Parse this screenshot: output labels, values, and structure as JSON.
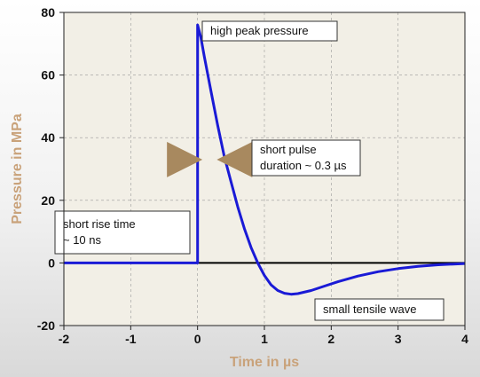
{
  "chart_data": {
    "type": "line",
    "xlabel": "Time in µs",
    "ylabel": "Pressure in MPa",
    "xlim": [
      -2,
      4
    ],
    "ylim": [
      -20,
      80
    ],
    "xticks": [
      "-2",
      "-1",
      "0",
      "1",
      "2",
      "3",
      "4"
    ],
    "yticks": [
      "-20",
      "0",
      "20",
      "40",
      "60",
      "80"
    ],
    "grid": true,
    "series": [
      {
        "x": [
          -2,
          0,
          0,
          0.05,
          0.1,
          0.2,
          0.3,
          0.4,
          0.5,
          0.6,
          0.7,
          0.8,
          0.9,
          1.0,
          1.1,
          1.2,
          1.3,
          1.4,
          1.5,
          1.7,
          1.9,
          2.1,
          2.4,
          2.7,
          3.0,
          3.3,
          3.6,
          4.0
        ],
        "y": [
          0,
          0,
          76,
          72,
          66,
          55,
          44,
          34,
          26,
          18,
          11,
          5,
          0,
          -4,
          -7,
          -8.8,
          -9.7,
          -10,
          -9.8,
          -8.8,
          -7.4,
          -6,
          -4.2,
          -2.8,
          -1.8,
          -1.1,
          -0.6,
          -0.2
        ]
      }
    ],
    "annotations": [
      {
        "lines": [
          "high peak pressure"
        ]
      },
      {
        "lines": [
          "short pulse",
          "duration ~ 0.3 µs"
        ]
      },
      {
        "lines": [
          "short rise time",
          "~ 10 ns"
        ]
      },
      {
        "lines": [
          "small tensile wave"
        ]
      }
    ],
    "colors": {
      "curve": "#1a1ad6",
      "plot_background": "#f2efe6",
      "axis_title": "#c9a27a",
      "arrow": "#a8895f",
      "zero_line": "#000000",
      "grid": "#9a9a9a"
    }
  }
}
